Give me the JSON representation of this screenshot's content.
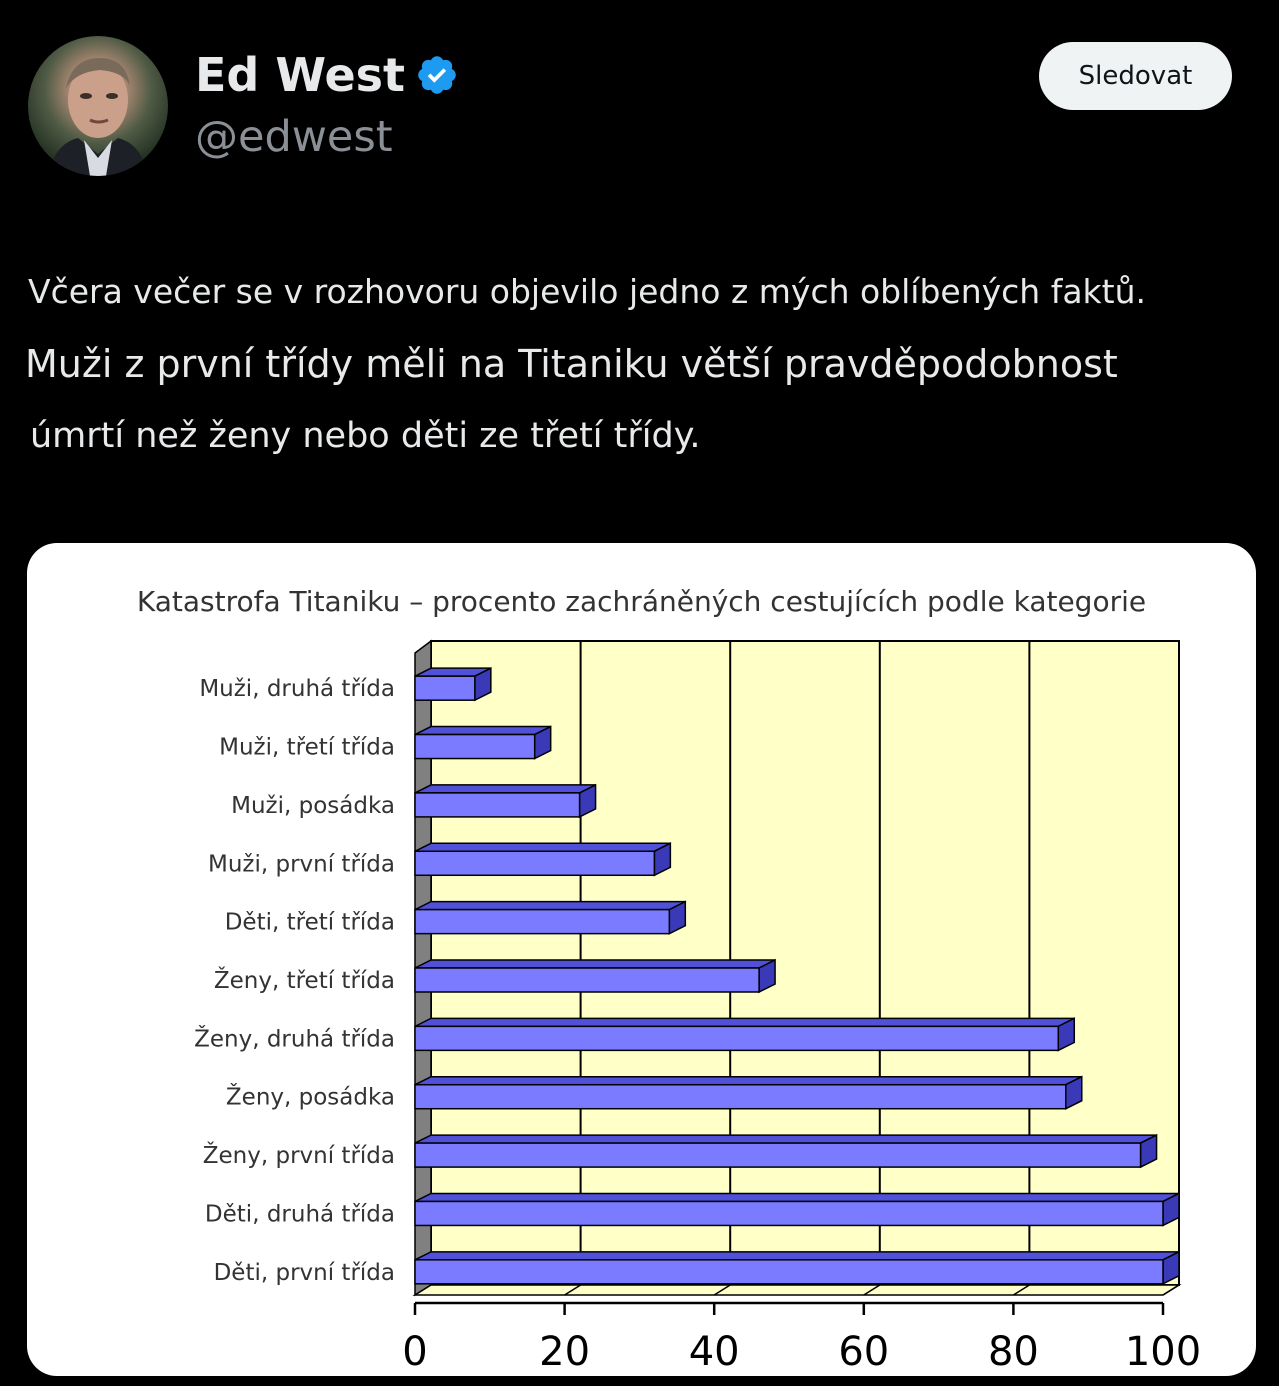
{
  "user": {
    "name": "Ed West",
    "handle": "@edwest",
    "verified_color": "#1d9bf0"
  },
  "follow_button": {
    "label": "Sledovat"
  },
  "tweet": {
    "lines": [
      "Včera večer se v rozhovoru objevilo jedno z mých oblíbených faktů.",
      "Muži z první třídy měli na Titaniku větší pravděpodobnost",
      "úmrtí než ženy nebo děti ze třetí třídy."
    ]
  },
  "chart_data": {
    "type": "bar",
    "orientation": "horizontal",
    "title": "Katastrofa Titaniku – procento zachráněných cestujících podle kategorie",
    "categories": [
      "Muži, druhá třída",
      "Muži, třetí třída",
      "Muži, posádka",
      "Muži, první třída",
      "Děti, třetí třída",
      "Ženy, třetí třída",
      "Ženy, druhá třída",
      "Ženy, posádka",
      "Ženy, první třída",
      "Děti, druhá třída",
      "Děti, první třída"
    ],
    "values": [
      8,
      16,
      22,
      32,
      34,
      46,
      86,
      87,
      97,
      100,
      100
    ],
    "xlim": [
      0,
      100
    ],
    "xticks": [
      0,
      20,
      40,
      60,
      80,
      100
    ],
    "grid": true,
    "bar_color": "#7b7bff",
    "plot_background": "#ffffc8"
  }
}
